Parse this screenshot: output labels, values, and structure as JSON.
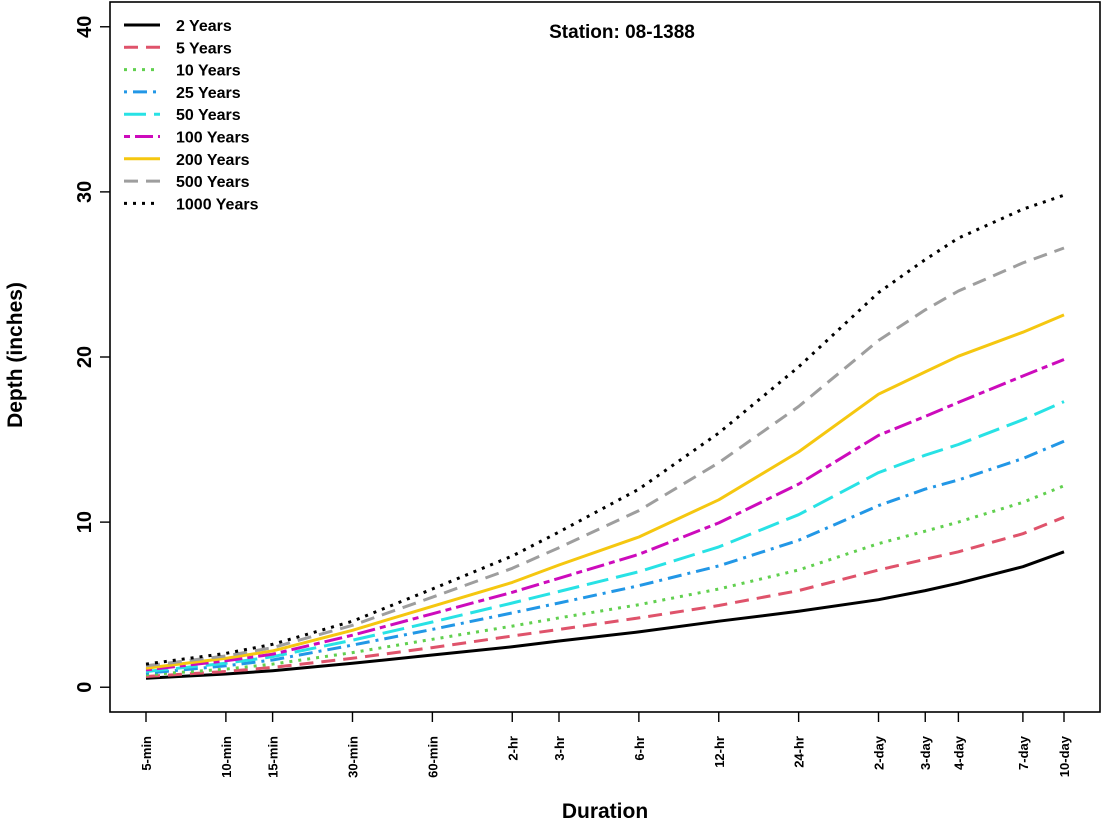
{
  "chart_data": {
    "type": "line",
    "title": "Station: 08-1388",
    "xlabel": "Duration",
    "ylabel": "Depth (inches)",
    "ylim": [
      -1.5,
      41.5
    ],
    "yticks": [
      0,
      10,
      20,
      30,
      40
    ],
    "grid": false,
    "legend_position": "top-left",
    "x": [
      "5-min",
      "10-min",
      "15-min",
      "30-min",
      "60-min",
      "2-hr",
      "3-hr",
      "6-hr",
      "12-hr",
      "24-hr",
      "2-day",
      "3-day",
      "4-day",
      "7-day",
      "10-day"
    ],
    "x_minutes": [
      5,
      10,
      15,
      30,
      60,
      120,
      180,
      360,
      720,
      1440,
      2880,
      4320,
      5760,
      10080,
      14400
    ],
    "series": [
      {
        "name": "2 Years",
        "color": "#000000",
        "dash": "solid",
        "values": [
          0.55,
          0.8,
          1.0,
          1.45,
          1.95,
          2.45,
          2.8,
          3.35,
          4.0,
          4.6,
          5.3,
          5.85,
          6.3,
          7.3,
          8.2
        ]
      },
      {
        "name": "5 Years",
        "color": "#DF536B",
        "dash": "dashed",
        "values": [
          0.65,
          0.95,
          1.2,
          1.75,
          2.4,
          3.1,
          3.5,
          4.2,
          4.95,
          5.85,
          7.1,
          7.75,
          8.2,
          9.3,
          10.3
        ]
      },
      {
        "name": "10 Years",
        "color": "#61D04F",
        "dash": "dotted",
        "values": [
          0.75,
          1.1,
          1.4,
          2.1,
          2.9,
          3.7,
          4.2,
          5.0,
          5.95,
          7.1,
          8.7,
          9.45,
          10.0,
          11.2,
          12.2
        ]
      },
      {
        "name": "25 Years",
        "color": "#2297E6",
        "dash": "dotdash",
        "values": [
          0.85,
          1.3,
          1.65,
          2.55,
          3.5,
          4.5,
          5.1,
          6.15,
          7.35,
          8.9,
          11.0,
          12.0,
          12.55,
          13.85,
          14.9
        ]
      },
      {
        "name": "50 Years",
        "color": "#28E2E5",
        "dash": "longdash",
        "values": [
          0.95,
          1.45,
          1.85,
          2.85,
          3.95,
          5.1,
          5.8,
          7.0,
          8.5,
          10.45,
          13.0,
          14.05,
          14.7,
          16.2,
          17.3
        ]
      },
      {
        "name": "100 Years",
        "color": "#CD0BBC",
        "dash": "twodash",
        "values": [
          1.05,
          1.6,
          2.0,
          3.15,
          4.45,
          5.75,
          6.6,
          8.05,
          9.95,
          12.3,
          15.25,
          16.4,
          17.25,
          18.85,
          19.85
        ]
      },
      {
        "name": "200 Years",
        "color": "#F5C710",
        "dash": "solid",
        "values": [
          1.15,
          1.75,
          2.2,
          3.45,
          4.9,
          6.35,
          7.4,
          9.1,
          11.35,
          14.25,
          17.75,
          19.1,
          20.05,
          21.5,
          22.55
        ]
      },
      {
        "name": "500 Years",
        "color": "#9E9E9E",
        "dash": "dashed",
        "values": [
          1.3,
          1.9,
          2.4,
          3.75,
          5.45,
          7.2,
          8.45,
          10.7,
          13.6,
          17.0,
          21.0,
          22.85,
          24.0,
          25.7,
          26.6
        ]
      },
      {
        "name": "1000 Years",
        "color": "#000000",
        "dash": "dotted",
        "values": [
          1.4,
          2.05,
          2.6,
          4.0,
          5.95,
          7.95,
          9.4,
          12.0,
          15.4,
          19.4,
          23.9,
          25.9,
          27.2,
          28.95,
          29.8
        ]
      }
    ]
  }
}
